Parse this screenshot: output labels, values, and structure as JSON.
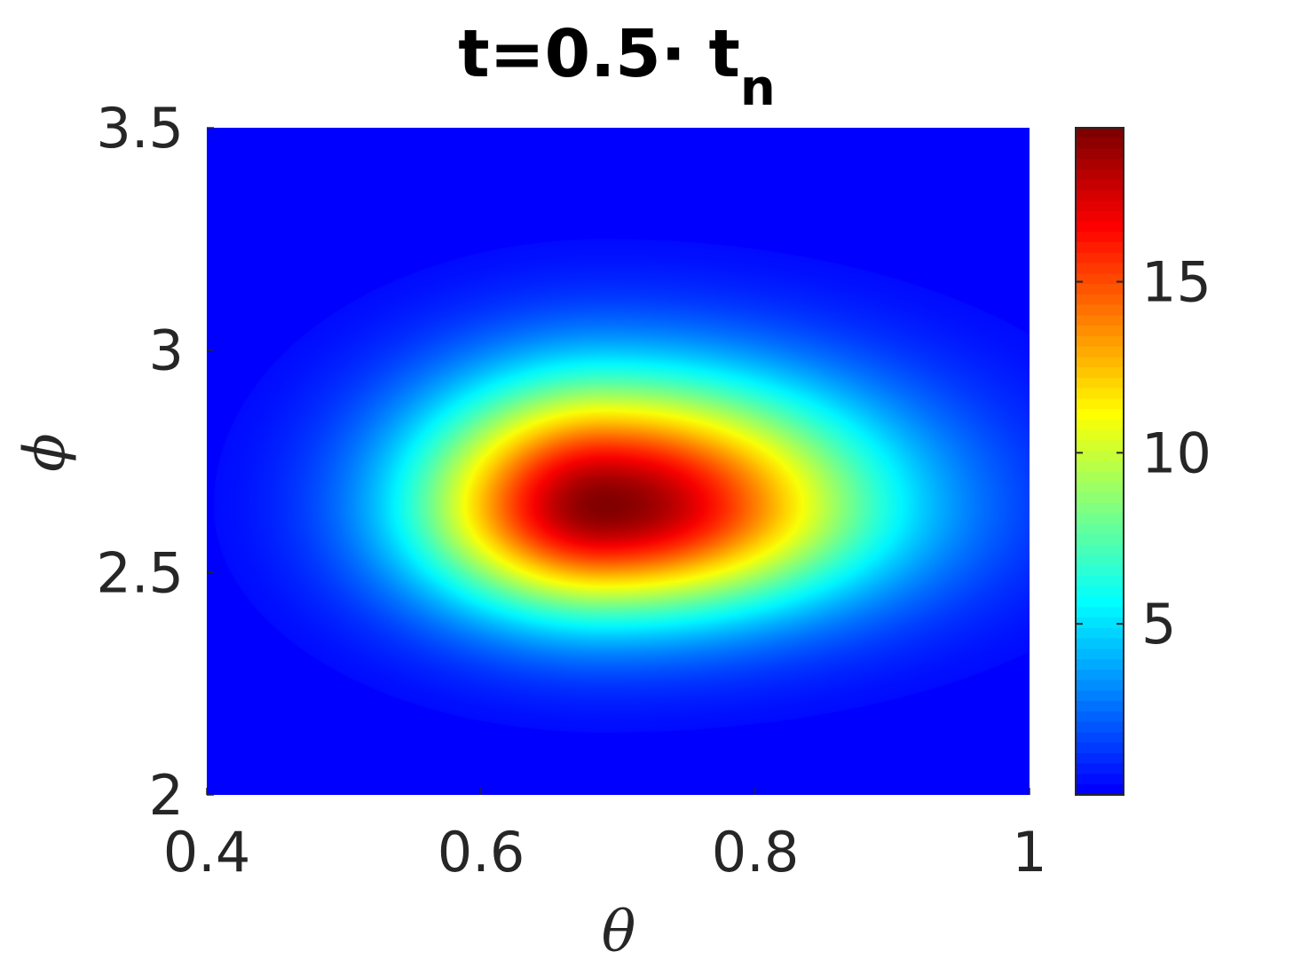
{
  "chart_data": {
    "type": "heatmap",
    "title": "t=0.5· t",
    "title_subscript": "n",
    "xlabel": "θ",
    "ylabel": "ϕ",
    "xlim": [
      0.4,
      1.0
    ],
    "ylim": [
      2.0,
      3.5
    ],
    "xticks": [
      0.4,
      0.6,
      0.8,
      1.0
    ],
    "xtick_labels": [
      "0.4",
      "0.6",
      "0.8",
      "1"
    ],
    "yticks": [
      2.0,
      2.5,
      3.0,
      3.5
    ],
    "ytick_labels": [
      "2",
      "2.5",
      "3",
      "3.5"
    ],
    "colormap": "jet",
    "clim": [
      0,
      19.5
    ],
    "colorbar_ticks": [
      5,
      10,
      15
    ],
    "colorbar_tick_labels": [
      "5",
      "10",
      "15"
    ],
    "peak": {
      "theta": 0.69,
      "phi": 2.65,
      "value": 19.5
    },
    "spread": {
      "sigma_theta_left": 0.095,
      "sigma_theta_right": 0.135,
      "sigma_phi_below": 0.17,
      "sigma_phi_above": 0.2
    },
    "grid": false
  }
}
